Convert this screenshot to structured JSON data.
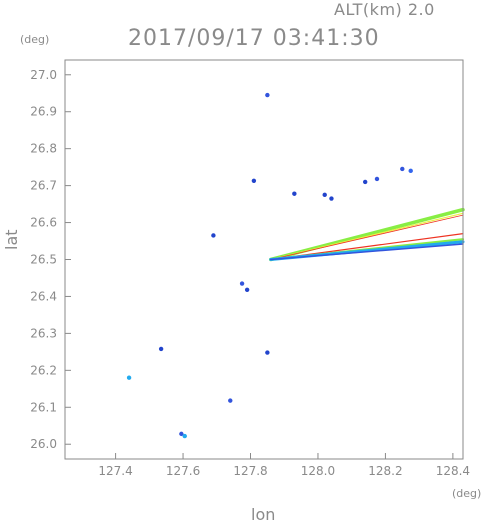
{
  "header": {
    "altitude": "ALT(km) 2.0",
    "datetime": "2017/09/17 03:41:30"
  },
  "chart_data": {
    "type": "scatter",
    "title": "2017/09/17 03:41:30",
    "xlabel": "lon",
    "ylabel": "lat",
    "x_unit": "(deg)",
    "y_unit": "(deg)",
    "xlim": [
      127.25,
      128.43
    ],
    "ylim": [
      25.96,
      27.04
    ],
    "xticks": [
      "127.4",
      "127.6",
      "127.8",
      "128.0",
      "128.2",
      "128.4"
    ],
    "yticks": [
      "26.0",
      "26.1",
      "26.2",
      "26.3",
      "26.4",
      "26.5",
      "26.6",
      "26.7",
      "26.8",
      "26.9",
      "27.0"
    ],
    "grid": false,
    "colors": {
      "axis": "#8a8a8a",
      "echo_blue": "#3355dd",
      "echo_cyan": "#22aaee",
      "echo_green": "#88ee44",
      "echo_yellow": "#eeee44",
      "echo_red": "#ee3322"
    },
    "echoes": [
      {
        "lon": 127.85,
        "lat": 26.945,
        "color": "#3355dd"
      },
      {
        "lon": 128.275,
        "lat": 26.74,
        "color": "#3366ee"
      },
      {
        "lon": 128.25,
        "lat": 26.745,
        "color": "#3355dd"
      },
      {
        "lon": 128.175,
        "lat": 26.718,
        "color": "#3355dd"
      },
      {
        "lon": 128.14,
        "lat": 26.71,
        "color": "#2244cc"
      },
      {
        "lon": 127.81,
        "lat": 26.713,
        "color": "#2244cc"
      },
      {
        "lon": 127.93,
        "lat": 26.678,
        "color": "#2244cc"
      },
      {
        "lon": 128.02,
        "lat": 26.675,
        "color": "#2244cc"
      },
      {
        "lon": 128.04,
        "lat": 26.665,
        "color": "#2244cc"
      },
      {
        "lon": 127.69,
        "lat": 26.565,
        "color": "#2244cc"
      },
      {
        "lon": 127.775,
        "lat": 26.435,
        "color": "#3355dd"
      },
      {
        "lon": 127.79,
        "lat": 26.418,
        "color": "#2244cc"
      },
      {
        "lon": 127.535,
        "lat": 26.258,
        "color": "#2244cc"
      },
      {
        "lon": 127.85,
        "lat": 26.248,
        "color": "#2244cc"
      },
      {
        "lon": 127.44,
        "lat": 26.18,
        "color": "#22aaee"
      },
      {
        "lon": 127.74,
        "lat": 26.118,
        "color": "#3355dd"
      },
      {
        "lon": 127.595,
        "lat": 26.028,
        "color": "#3355dd"
      },
      {
        "lon": 127.605,
        "lat": 26.022,
        "color": "#22aaee"
      }
    ],
    "beams": [
      {
        "from": [
          127.86,
          26.5
        ],
        "to": [
          128.43,
          26.635
        ],
        "color": "#88ee44",
        "width": 3.5
      },
      {
        "from": [
          127.86,
          26.5
        ],
        "to": [
          128.43,
          26.625
        ],
        "color": "#eeee44",
        "width": 1.2
      },
      {
        "from": [
          127.86,
          26.5
        ],
        "to": [
          128.43,
          26.62
        ],
        "color": "#ee3322",
        "width": 0.8
      },
      {
        "from": [
          127.86,
          26.5
        ],
        "to": [
          128.43,
          26.57
        ],
        "color": "#ee3322",
        "width": 1.2
      },
      {
        "from": [
          127.86,
          26.5
        ],
        "to": [
          128.43,
          26.555
        ],
        "color": "#88ee44",
        "width": 2.2
      },
      {
        "from": [
          127.86,
          26.5
        ],
        "to": [
          128.43,
          26.548
        ],
        "color": "#22aaee",
        "width": 3.0
      },
      {
        "from": [
          127.86,
          26.5
        ],
        "to": [
          128.43,
          26.542
        ],
        "color": "#3355dd",
        "width": 1.5
      }
    ]
  }
}
